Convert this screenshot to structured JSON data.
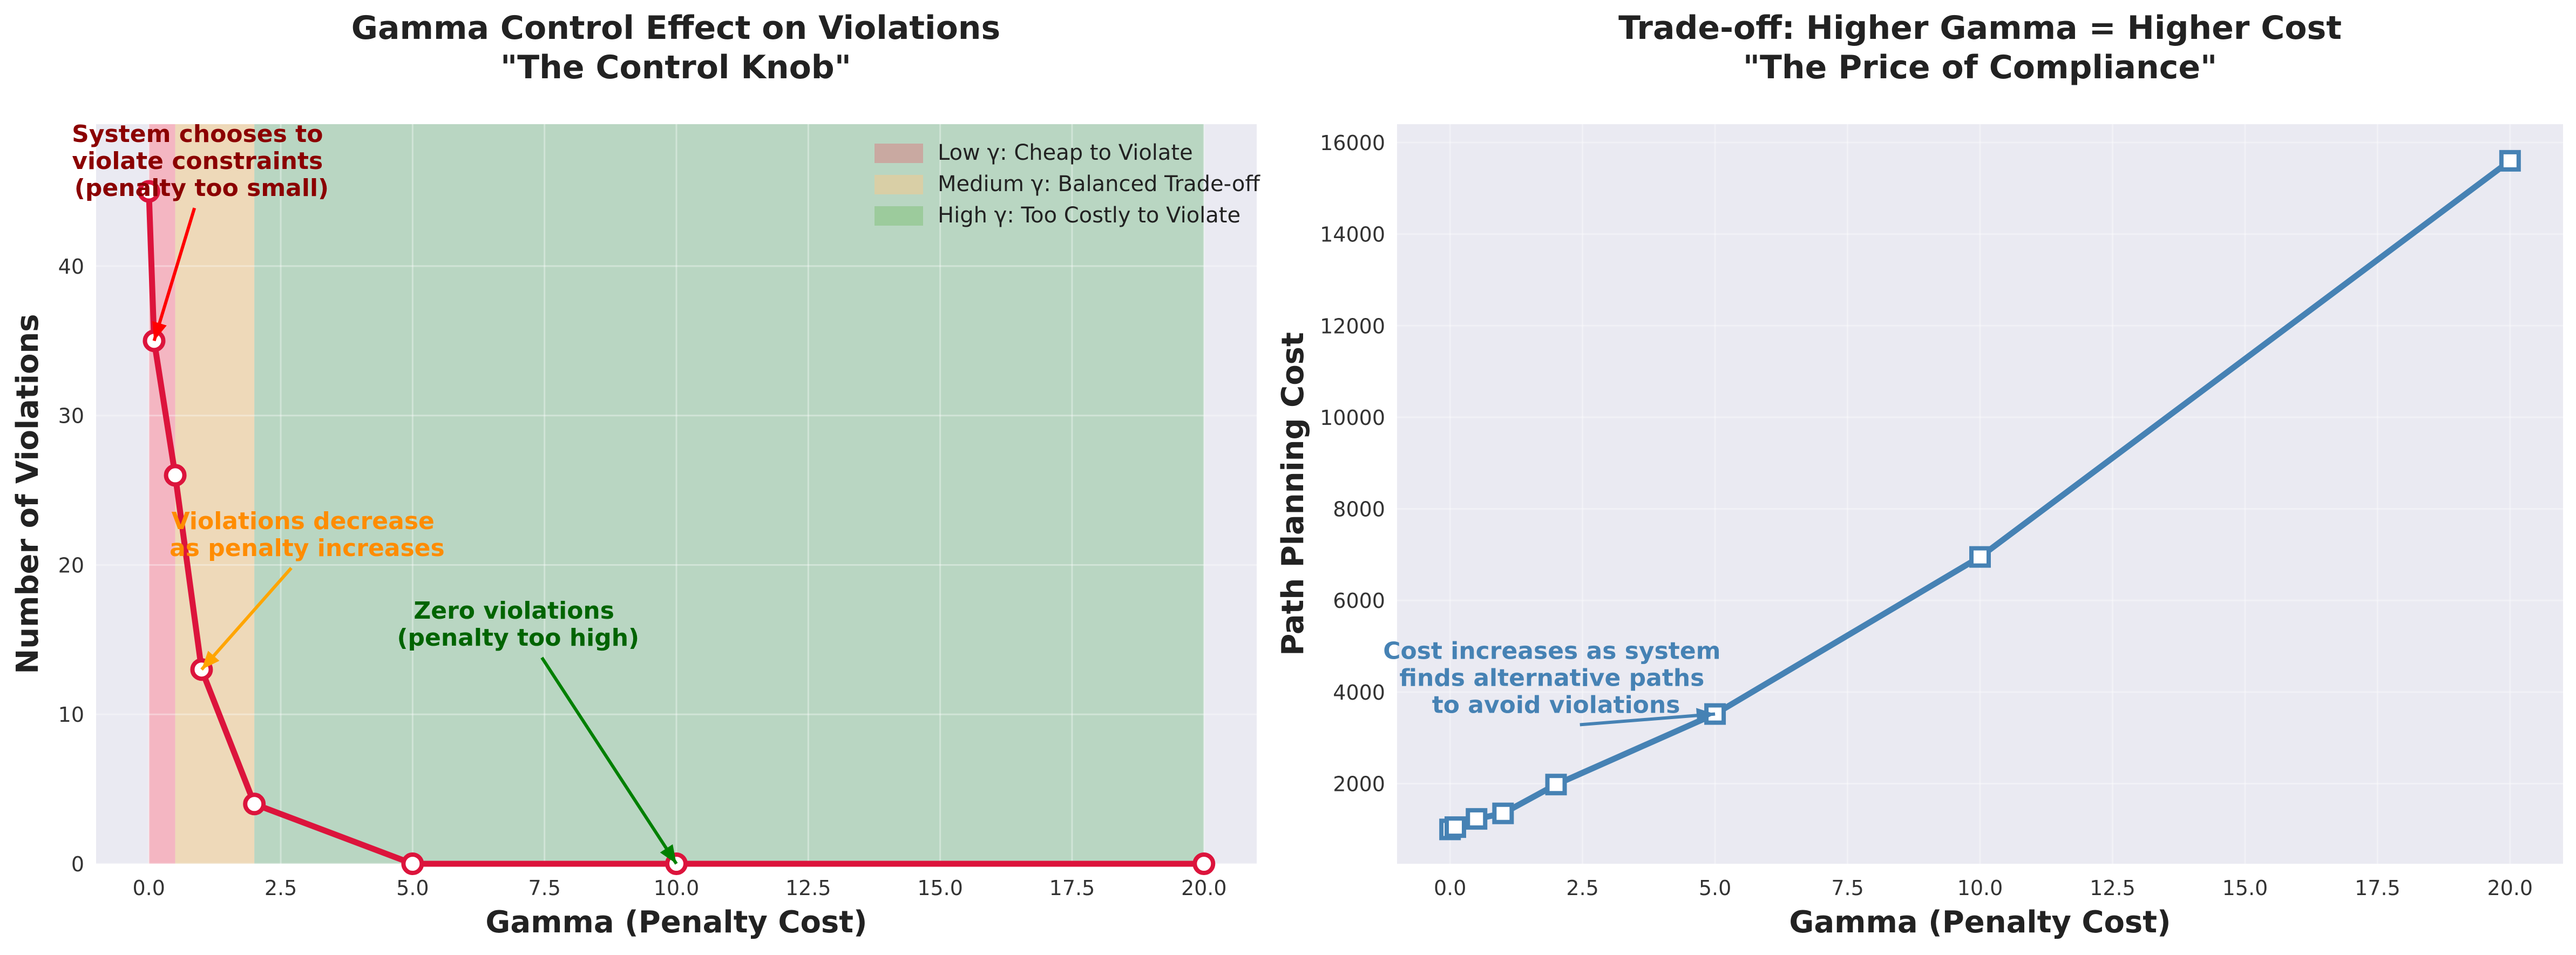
{
  "figure": {
    "colors": {
      "plot_bg": "#eaeaf2",
      "grid": "#ffffff",
      "violations_line": "#dc143c",
      "cost_line": "#4682b4",
      "low_band": "#f4b6c2",
      "medium_band": "#eed9b9",
      "high_band": "#b9d6c2",
      "annot_low": "#8b0000",
      "annot_mid": "#ff8c00",
      "annot_high": "#006400",
      "arrow_low": "#ff0000",
      "arrow_mid": "#ffa500",
      "arrow_high": "#008000"
    }
  },
  "chart_data": [
    {
      "type": "line",
      "title_line1": "Gamma Control Effect on Violations",
      "title_line2": "\"The Control Knob\"",
      "xlabel": "Gamma (Penalty Cost)",
      "ylabel": "Number of Violations",
      "xlim": [
        -1.0,
        21.0
      ],
      "ylim": [
        0,
        49.5
      ],
      "xticks": [
        0.0,
        2.5,
        5.0,
        7.5,
        10.0,
        12.5,
        15.0,
        17.5,
        20.0
      ],
      "xtick_labels": [
        "0.0",
        "2.5",
        "5.0",
        "7.5",
        "10.0",
        "12.5",
        "15.0",
        "17.5",
        "20.0"
      ],
      "yticks": [
        0,
        10,
        20,
        30,
        40
      ],
      "ytick_labels": [
        "0",
        "10",
        "20",
        "30",
        "40"
      ],
      "grid": true,
      "legend_position": "top-right",
      "bands": [
        {
          "label": "Low γ: Cheap to Violate",
          "from": 0.0,
          "to": 0.5,
          "color": "#f4b6c2",
          "legend_color": "#c9a9a1"
        },
        {
          "label": "Medium γ: Balanced Trade-off",
          "from": 0.5,
          "to": 2.0,
          "color": "#eed9b9",
          "legend_color": "#d9cfa6"
        },
        {
          "label": "High γ: Too Costly to Violate",
          "from": 2.0,
          "to": 20.0,
          "color": "#b9d6c2",
          "legend_color": "#9ccb9c"
        }
      ],
      "series": [
        {
          "x": [
            0.0,
            0.1,
            0.5,
            1.0,
            2.0,
            5.0,
            10.0,
            20.0
          ],
          "y": [
            45,
            35,
            26,
            13,
            4,
            0,
            0,
            0
          ]
        }
      ],
      "annotations": [
        {
          "text": [
            "System chooses to",
            "violate constraints",
            "(penalty too small)"
          ],
          "text_x": 1.0,
          "text_y": 47.0,
          "arrow_to_x": 0.1,
          "arrow_to_y": 35,
          "color_key": "annot_low",
          "arrow_key": "arrow_low"
        },
        {
          "text": [
            "Violations decrease",
            "as penalty increases"
          ],
          "text_x": 3.0,
          "text_y": 22.0,
          "arrow_to_x": 1.0,
          "arrow_to_y": 13,
          "color_key": "annot_mid",
          "arrow_key": "arrow_mid"
        },
        {
          "text": [
            "Zero violations",
            "(penalty too high)"
          ],
          "text_x": 7.0,
          "text_y": 16.0,
          "arrow_to_x": 10.0,
          "arrow_to_y": 0,
          "color_key": "annot_high",
          "arrow_key": "arrow_high"
        }
      ]
    },
    {
      "type": "line",
      "title_line1": "Trade-off: Higher Gamma = Higher Cost",
      "title_line2": "\"The Price of Compliance\"",
      "xlabel": "Gamma (Penalty Cost)",
      "ylabel": "Path Planning Cost",
      "xlim": [
        -1.0,
        21.0
      ],
      "ylim": [
        250,
        16400
      ],
      "xticks": [
        0.0,
        2.5,
        5.0,
        7.5,
        10.0,
        12.5,
        15.0,
        17.5,
        20.0
      ],
      "xtick_labels": [
        "0.0",
        "2.5",
        "5.0",
        "7.5",
        "10.0",
        "12.5",
        "15.0",
        "17.5",
        "20.0"
      ],
      "yticks": [
        2000,
        4000,
        6000,
        8000,
        10000,
        12000,
        14000,
        16000
      ],
      "ytick_labels": [
        "2000",
        "4000",
        "6000",
        "8000",
        "10000",
        "12000",
        "14000",
        "16000"
      ],
      "grid": true,
      "series": [
        {
          "x": [
            0.0,
            0.1,
            0.5,
            1.0,
            2.0,
            5.0,
            10.0,
            20.0
          ],
          "y": [
            1000,
            1050,
            1230,
            1350,
            1980,
            3520,
            6950,
            15600
          ]
        }
      ],
      "annotations": [
        {
          "text": [
            "Cost increases as system",
            "finds alternative paths",
            "to avoid violations"
          ],
          "text_x": 2.0,
          "text_y": 4300,
          "arrow_to_x": 5.0,
          "arrow_to_y": 3520,
          "color_key": "cost_line",
          "arrow_key": "cost_line"
        }
      ]
    }
  ]
}
